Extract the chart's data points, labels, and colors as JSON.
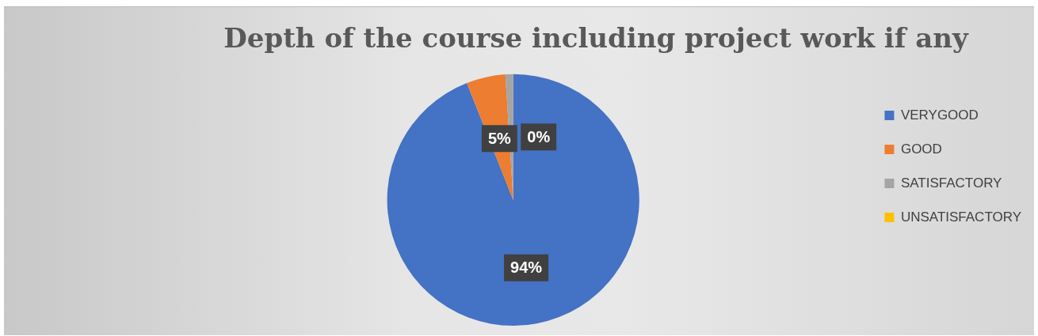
{
  "chart_data": {
    "type": "pie",
    "title": "Depth of the course including project work if any",
    "categories": [
      "VERYGOOD",
      "GOOD",
      "SATISFACTORY",
      "UNSATISFACTORY"
    ],
    "values": [
      94,
      5,
      1,
      0
    ],
    "colors": [
      "#4472c4",
      "#ed7d31",
      "#a5a5a5",
      "#ffc000"
    ],
    "value_labels": [
      "94%",
      "5%",
      null,
      "0%"
    ],
    "legend": "right"
  }
}
